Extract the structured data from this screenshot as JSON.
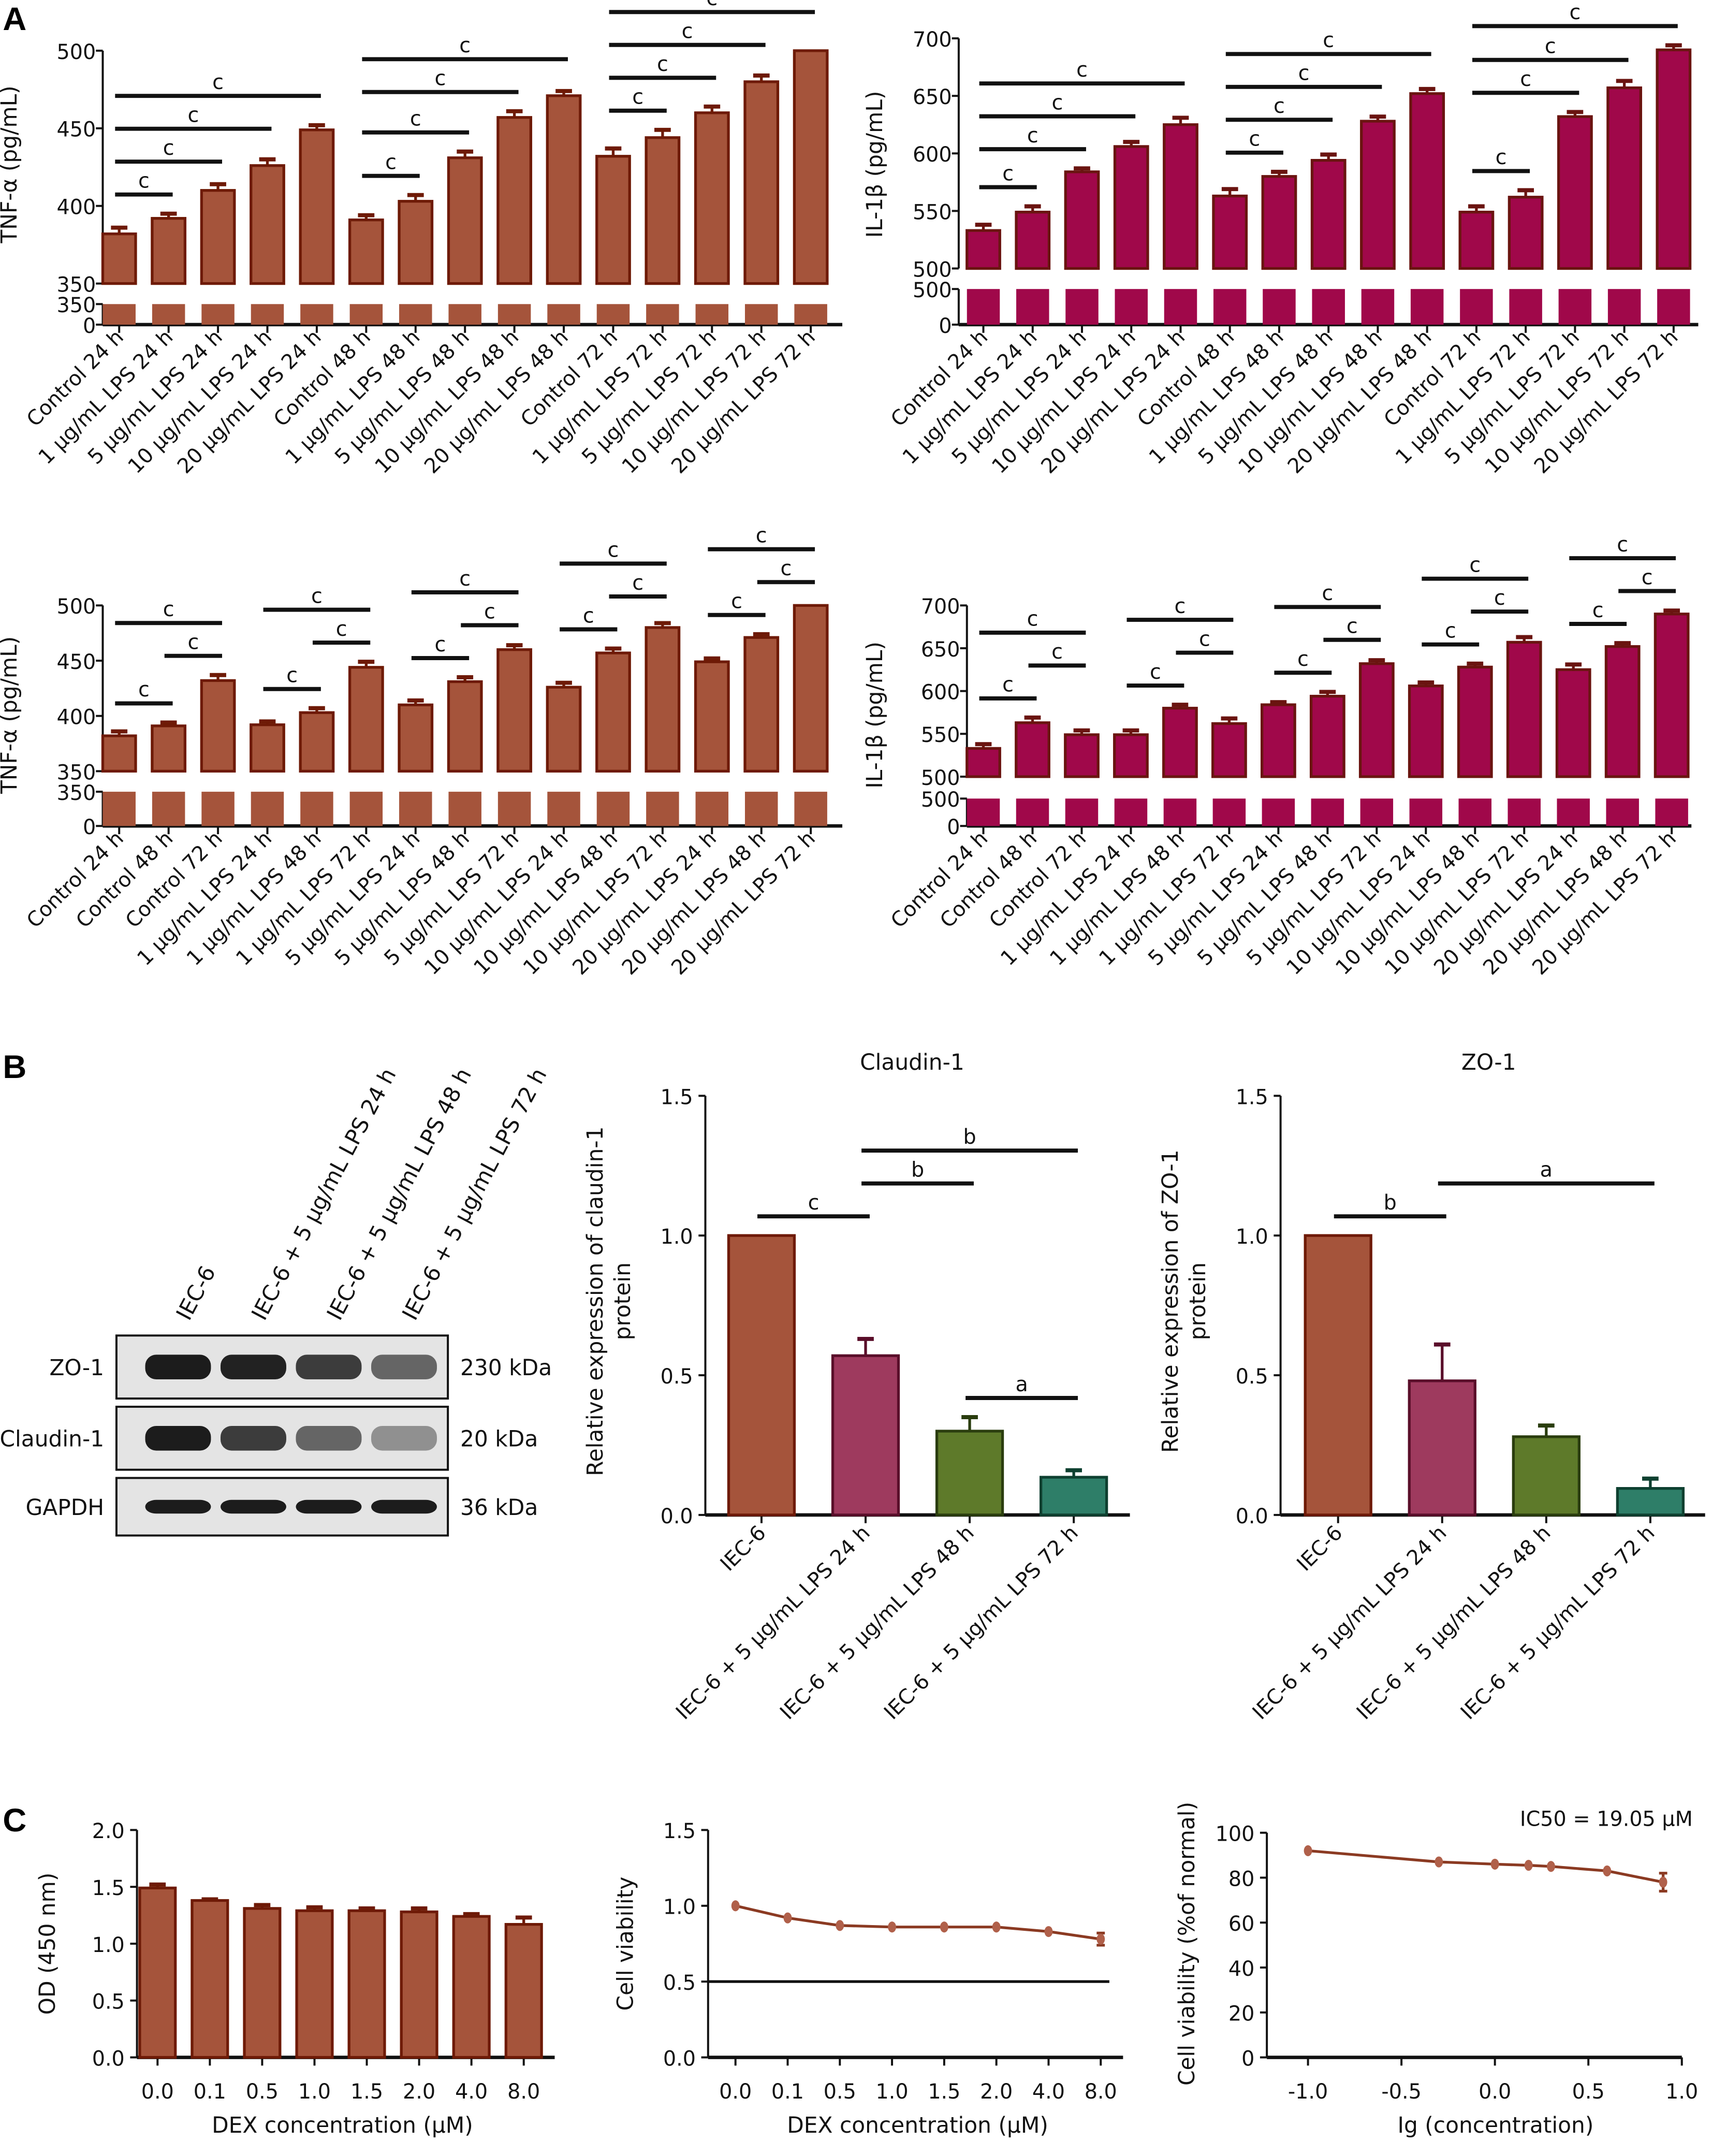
{
  "panel_labels": {
    "a": "A",
    "b": "B",
    "c": "C"
  },
  "colors": {
    "tnf_bar": "#A5543B",
    "tnf_edge": "#6E1A06",
    "il1b_bar": "#A0084A",
    "il1b_edge": "#6A1410",
    "b_bars": [
      "#A5543B",
      "#9E3A5E",
      "#5E7A2A",
      "#2E7E68"
    ],
    "b_edges": [
      "#6E1A06",
      "#5A0E2A",
      "#2A3D0E",
      "#0E4030"
    ],
    "line": "#8B3A22",
    "marker": "#B0604A"
  },
  "western_blot": {
    "lanes": [
      "IEC-6",
      "IEC-6 + 5 μg/mL LPS 24 h",
      "IEC-6 + 5 μg/mL LPS 48 h",
      "IEC-6 + 5 μg/mL LPS 72 h"
    ],
    "rows": [
      {
        "protein": "ZO-1",
        "size": "230 kDa"
      },
      {
        "protein": "Claudin-1",
        "size": "20 kDa"
      },
      {
        "protein": "GAPDH",
        "size": "36 kDa"
      }
    ]
  },
  "chart_data": [
    {
      "type": "bar",
      "title": "",
      "ylabel": [
        "TNF-α (pg/mL)"
      ],
      "xlabel": "",
      "color_key": "tnf",
      "y_break": {
        "lower": [
          0,
          350
        ],
        "upper": [
          350,
          500
        ]
      },
      "yticks_upper": [
        350,
        400,
        450,
        500
      ],
      "yticks_lower": [
        0,
        350
      ],
      "categories": [
        "Control 24 h",
        "1 μg/mL LPS 24 h",
        "5 μg/mL LPS 24 h",
        "10 μg/mL LPS 24 h",
        "20 μg/mL LPS 24 h",
        "Control 48 h",
        "1 μg/mL LPS 48 h",
        "5 μg/mL LPS 48 h",
        "10 μg/mL LPS 48 h",
        "20 μg/mL LPS 48 h",
        "Control 72 h",
        "1 μg/mL LPS 72 h",
        "5 μg/mL LPS 72 h",
        "10 μg/mL LPS 72 h",
        "20 μg/mL LPS 72 h"
      ],
      "values": [
        382,
        392,
        410,
        426,
        449,
        391,
        403,
        431,
        457,
        471,
        432,
        444,
        460,
        480,
        500
      ],
      "errors": [
        4,
        3,
        4,
        4,
        3,
        3,
        4,
        4,
        4,
        3,
        5,
        5,
        4,
        4,
        0
      ],
      "significance": [
        {
          "from": 0,
          "to": 1,
          "label": "c"
        },
        {
          "from": 0,
          "to": 2,
          "label": "c"
        },
        {
          "from": 0,
          "to": 3,
          "label": "c"
        },
        {
          "from": 0,
          "to": 4,
          "label": "c"
        },
        {
          "from": 5,
          "to": 6,
          "label": "c"
        },
        {
          "from": 5,
          "to": 7,
          "label": "c"
        },
        {
          "from": 5,
          "to": 8,
          "label": "c"
        },
        {
          "from": 5,
          "to": 9,
          "label": "c"
        },
        {
          "from": 10,
          "to": 11,
          "label": "c"
        },
        {
          "from": 10,
          "to": 12,
          "label": "c"
        },
        {
          "from": 10,
          "to": 13,
          "label": "c"
        },
        {
          "from": 10,
          "to": 14,
          "label": "c"
        }
      ]
    },
    {
      "type": "bar",
      "title": "",
      "ylabel": [
        "IL-1β (pg/mL)"
      ],
      "xlabel": "",
      "color_key": "il1b",
      "y_break": {
        "lower": [
          0,
          500
        ],
        "upper": [
          500,
          700
        ]
      },
      "yticks_upper": [
        500,
        550,
        600,
        650,
        700
      ],
      "yticks_lower": [
        0,
        500
      ],
      "categories": [
        "Control 24 h",
        "1 μg/mL LPS 24 h",
        "5 μg/mL LPS 24 h",
        "10 μg/mL LPS 24 h",
        "20 μg/mL LPS 24 h",
        "Control 48 h",
        "1 μg/mL LPS 48 h",
        "5 μg/mL LPS 48 h",
        "10 μg/mL LPS 48 h",
        "20 μg/mL LPS 48 h",
        "Control 72 h",
        "1 μg/mL LPS 72 h",
        "5 μg/mL LPS 72 h",
        "10 μg/mL LPS 72 h",
        "20 μg/mL LPS 72 h"
      ],
      "values": [
        533,
        549,
        584,
        606,
        625,
        563,
        580,
        594,
        628,
        652,
        549,
        562,
        632,
        657,
        690
      ],
      "errors": [
        5,
        5,
        3,
        4,
        6,
        6,
        4,
        5,
        4,
        4,
        5,
        6,
        4,
        6,
        4
      ],
      "significance": [
        {
          "from": 0,
          "to": 1,
          "label": "c"
        },
        {
          "from": 0,
          "to": 2,
          "label": "c"
        },
        {
          "from": 0,
          "to": 3,
          "label": "c"
        },
        {
          "from": 0,
          "to": 4,
          "label": "c"
        },
        {
          "from": 5,
          "to": 6,
          "label": "c"
        },
        {
          "from": 5,
          "to": 7,
          "label": "c"
        },
        {
          "from": 5,
          "to": 8,
          "label": "c"
        },
        {
          "from": 5,
          "to": 9,
          "label": "c"
        },
        {
          "from": 10,
          "to": 11,
          "label": "c"
        },
        {
          "from": 10,
          "to": 12,
          "label": "c"
        },
        {
          "from": 10,
          "to": 13,
          "label": "c"
        },
        {
          "from": 10,
          "to": 14,
          "label": "c"
        }
      ]
    },
    {
      "type": "bar",
      "title": "",
      "ylabel": [
        "TNF-α (pg/mL)"
      ],
      "xlabel": "",
      "color_key": "tnf",
      "y_break": {
        "lower": [
          0,
          350
        ],
        "upper": [
          350,
          500
        ]
      },
      "yticks_upper": [
        350,
        400,
        450,
        500
      ],
      "yticks_lower": [
        0,
        350
      ],
      "categories": [
        "Control 24 h",
        "Control 48 h",
        "Control 72 h",
        "1 μg/mL LPS 24 h",
        "1 μg/mL LPS 48 h",
        "1 μg/mL LPS 72 h",
        "5 μg/mL LPS 24 h",
        "5 μg/mL LPS 48 h",
        "5 μg/mL LPS 72 h",
        "10 μg/mL LPS 24 h",
        "10 μg/mL LPS 48 h",
        "10 μg/mL LPS 72 h",
        "20 μg/mL LPS 24 h",
        "20 μg/mL LPS 48 h",
        "20 μg/mL LPS 72 h"
      ],
      "values": [
        382,
        391,
        432,
        392,
        403,
        444,
        410,
        431,
        460,
        426,
        457,
        480,
        449,
        471,
        500
      ],
      "errors": [
        4,
        3,
        5,
        3,
        4,
        5,
        4,
        4,
        4,
        4,
        4,
        4,
        3,
        3,
        0
      ],
      "significance": [
        {
          "from": 0,
          "to": 1,
          "label": "c"
        },
        {
          "from": 1,
          "to": 2,
          "label": "c"
        },
        {
          "from": 0,
          "to": 2,
          "label": "c"
        },
        {
          "from": 3,
          "to": 4,
          "label": "c"
        },
        {
          "from": 4,
          "to": 5,
          "label": "c"
        },
        {
          "from": 3,
          "to": 5,
          "label": "c"
        },
        {
          "from": 6,
          "to": 7,
          "label": "c"
        },
        {
          "from": 7,
          "to": 8,
          "label": "c"
        },
        {
          "from": 6,
          "to": 8,
          "label": "c"
        },
        {
          "from": 9,
          "to": 10,
          "label": "c"
        },
        {
          "from": 10,
          "to": 11,
          "label": "c"
        },
        {
          "from": 9,
          "to": 11,
          "label": "c"
        },
        {
          "from": 12,
          "to": 13,
          "label": "c"
        },
        {
          "from": 13,
          "to": 14,
          "label": "c"
        },
        {
          "from": 12,
          "to": 14,
          "label": "c"
        }
      ]
    },
    {
      "type": "bar",
      "title": "",
      "ylabel": [
        "IL-1β (pg/mL)"
      ],
      "xlabel": "",
      "color_key": "il1b",
      "y_break": {
        "lower": [
          0,
          500
        ],
        "upper": [
          500,
          700
        ]
      },
      "yticks_upper": [
        500,
        550,
        600,
        650,
        700
      ],
      "yticks_lower": [
        0,
        500
      ],
      "categories": [
        "Control 24 h",
        "Control 48 h",
        "Control 72 h",
        "1 μg/mL LPS 24 h",
        "1 μg/mL LPS 48 h",
        "1 μg/mL LPS 72 h",
        "5 μg/mL LPS 24 h",
        "5 μg/mL LPS 48 h",
        "5 μg/mL LPS 72 h",
        "10 μg/mL LPS 24 h",
        "10 μg/mL LPS 48 h",
        "10 μg/mL LPS 72 h",
        "20 μg/mL LPS 24 h",
        "20 μg/mL LPS 48 h",
        "20 μg/mL LPS 72 h"
      ],
      "values": [
        533,
        563,
        549,
        549,
        580,
        562,
        584,
        594,
        632,
        606,
        628,
        657,
        625,
        652,
        690
      ],
      "errors": [
        5,
        6,
        5,
        5,
        4,
        6,
        3,
        5,
        4,
        4,
        4,
        6,
        6,
        4,
        4
      ],
      "significance": [
        {
          "from": 0,
          "to": 1,
          "label": "c"
        },
        {
          "from": 1,
          "to": 2,
          "label": "c"
        },
        {
          "from": 0,
          "to": 2,
          "label": "c"
        },
        {
          "from": 3,
          "to": 4,
          "label": "c"
        },
        {
          "from": 4,
          "to": 5,
          "label": "c"
        },
        {
          "from": 3,
          "to": 5,
          "label": "c"
        },
        {
          "from": 6,
          "to": 7,
          "label": "c"
        },
        {
          "from": 7,
          "to": 8,
          "label": "c"
        },
        {
          "from": 6,
          "to": 8,
          "label": "c"
        },
        {
          "from": 9,
          "to": 10,
          "label": "c"
        },
        {
          "from": 10,
          "to": 11,
          "label": "c"
        },
        {
          "from": 9,
          "to": 11,
          "label": "c"
        },
        {
          "from": 12,
          "to": 13,
          "label": "c"
        },
        {
          "from": 13,
          "to": 14,
          "label": "c"
        },
        {
          "from": 12,
          "to": 14,
          "label": "c"
        }
      ]
    },
    {
      "type": "bar",
      "title": "Claudin-1",
      "ylabel": [
        "Relative expression of claudin-1",
        "protein"
      ],
      "xlabel": "",
      "color_key": "b",
      "ylim": [
        0,
        1.5
      ],
      "yticks": [
        "0.0",
        "0.5",
        "1.0",
        "1.5"
      ],
      "categories": [
        "IEC-6",
        "IEC-6 + 5 μg/mL LPS 24 h",
        "IEC-6 + 5 μg/mL LPS 48 h",
        "IEC-6 + 5 μg/mL LPS 72 h"
      ],
      "values": [
        1.0,
        0.57,
        0.3,
        0.135
      ],
      "errors": [
        0,
        0.06,
        0.05,
        0.025
      ],
      "significance": [
        {
          "from": 0,
          "to": 1,
          "label": "c"
        },
        {
          "from": 2,
          "to": 3,
          "label": "a"
        },
        {
          "from": 1,
          "to": 2,
          "label": "b"
        },
        {
          "from": 1,
          "to": 3,
          "label": "b"
        }
      ]
    },
    {
      "type": "bar",
      "title": "ZO-1",
      "ylabel": [
        "Relative expression of ZO-1",
        "protein"
      ],
      "xlabel": "",
      "color_key": "b",
      "ylim": [
        0,
        1.5
      ],
      "yticks": [
        "0.0",
        "0.5",
        "1.0",
        "1.5"
      ],
      "categories": [
        "IEC-6",
        "IEC-6 + 5 μg/mL LPS 24 h",
        "IEC-6 + 5 μg/mL LPS 48 h",
        "IEC-6 + 5 μg/mL LPS 72 h"
      ],
      "values": [
        1.0,
        0.48,
        0.28,
        0.095
      ],
      "errors": [
        0,
        0.13,
        0.04,
        0.035
      ],
      "significance": [
        {
          "from": 0,
          "to": 1,
          "label": "b"
        },
        {
          "from": 1,
          "to": 3,
          "label": "a"
        }
      ]
    },
    {
      "type": "bar",
      "title": "",
      "ylabel": [
        "OD (450 nm)"
      ],
      "xlabel": "DEX concentration (μM)",
      "color_key": "tnf",
      "ylim": [
        0,
        2.0
      ],
      "yticks": [
        "0.0",
        "0.5",
        "1.0",
        "1.5",
        "2.0"
      ],
      "categories": [
        "0.0",
        "0.1",
        "0.5",
        "1.0",
        "1.5",
        "2.0",
        "4.0",
        "8.0"
      ],
      "values": [
        1.49,
        1.38,
        1.31,
        1.29,
        1.29,
        1.28,
        1.24,
        1.17
      ],
      "errors": [
        0.03,
        0.01,
        0.03,
        0.03,
        0.02,
        0.03,
        0.02,
        0.06
      ],
      "significance": []
    },
    {
      "type": "line",
      "title": "",
      "ylabel": [
        "Cell viability"
      ],
      "xlabel": "DEX concentration (μM)",
      "ylim": [
        0,
        1.5
      ],
      "yticks": [
        "0.0",
        "0.5",
        "1.0",
        "1.5"
      ],
      "categories": [
        "0.0",
        "0.1",
        "0.5",
        "1.0",
        "1.5",
        "2.0",
        "4.0",
        "8.0"
      ],
      "values": [
        1.0,
        0.92,
        0.87,
        0.86,
        0.86,
        0.86,
        0.83,
        0.78
      ],
      "errors": [
        0,
        0,
        0,
        0,
        0,
        0,
        0,
        0.04
      ],
      "reference_line": 0.5
    },
    {
      "type": "line",
      "title": "",
      "ylabel": [
        "Cell viability (%of normal)"
      ],
      "xlabel": "Ig (concentration)",
      "ylim": [
        0,
        100
      ],
      "yticks": [
        "0",
        "20",
        "40",
        "60",
        "80",
        "100"
      ],
      "xticks": [
        "-1.0",
        "-0.5",
        "0.0",
        "0.5",
        "1.0"
      ],
      "x": [
        -1.0,
        -0.3,
        0.0,
        0.18,
        0.3,
        0.6,
        0.9
      ],
      "values": [
        92,
        87,
        86,
        85.5,
        85,
        83,
        78
      ],
      "errors": [
        0,
        0,
        0,
        0,
        0,
        0,
        4
      ],
      "annotation": "IC50 = 19.05 μM"
    }
  ]
}
